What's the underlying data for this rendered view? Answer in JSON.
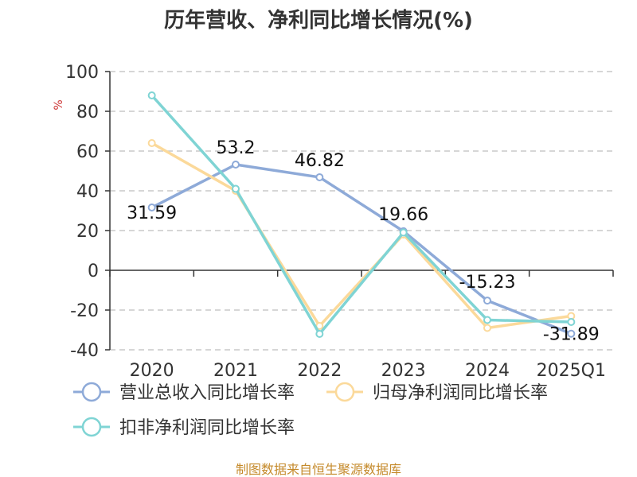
{
  "chart_data": {
    "type": "line",
    "title": "历年营收、净利同比增长情况(%)",
    "ylabel": "%",
    "categories": [
      "2020",
      "2021",
      "2022",
      "2023",
      "2024",
      "2025Q1"
    ],
    "ylim": [
      -40,
      100
    ],
    "yticks": [
      100,
      80,
      60,
      40,
      20,
      0,
      -20,
      -40
    ],
    "grid": true,
    "legend_position": "bottom",
    "series": [
      {
        "name": "营业总收入同比增长率",
        "color": "#8eaad8",
        "values": [
          31.59,
          53.2,
          46.82,
          19.66,
          -15.23,
          -31.89
        ],
        "labels": [
          "31.59",
          "53.2",
          "46.82",
          "19.66",
          "-15.23",
          "-31.89"
        ]
      },
      {
        "name": "归母净利润同比增长率",
        "color": "#fbd99a",
        "values": [
          64,
          40,
          -28,
          18,
          -29,
          -23
        ]
      },
      {
        "name": "扣非净利润同比增长率",
        "color": "#7fd4d4",
        "values": [
          88,
          41,
          -32,
          19,
          -25,
          -26
        ]
      }
    ]
  },
  "footer": {
    "source": "制图数据来自恒生聚源数据库"
  }
}
